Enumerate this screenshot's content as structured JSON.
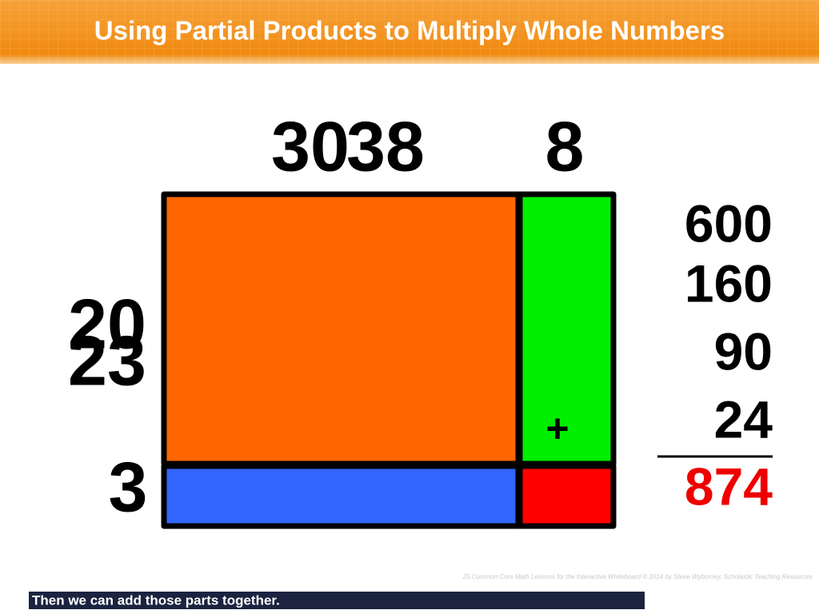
{
  "header": {
    "title": "Using Partial Products to Multiply Whole Numbers"
  },
  "area_model": {
    "top_labels": [
      "30",
      "38",
      "8"
    ],
    "side_labels": [
      "20",
      "23",
      "3"
    ],
    "plus": "+"
  },
  "partial_products": {
    "items": [
      "600",
      "160",
      "90",
      "24"
    ],
    "total": "874"
  },
  "footer": {
    "credit": "25 Common Core Math Lessons for the Interactive Whiteboard © 2014 by Steve Wyborney, Scholastic Teaching Resources",
    "caption": "Then we can add those parts together."
  }
}
